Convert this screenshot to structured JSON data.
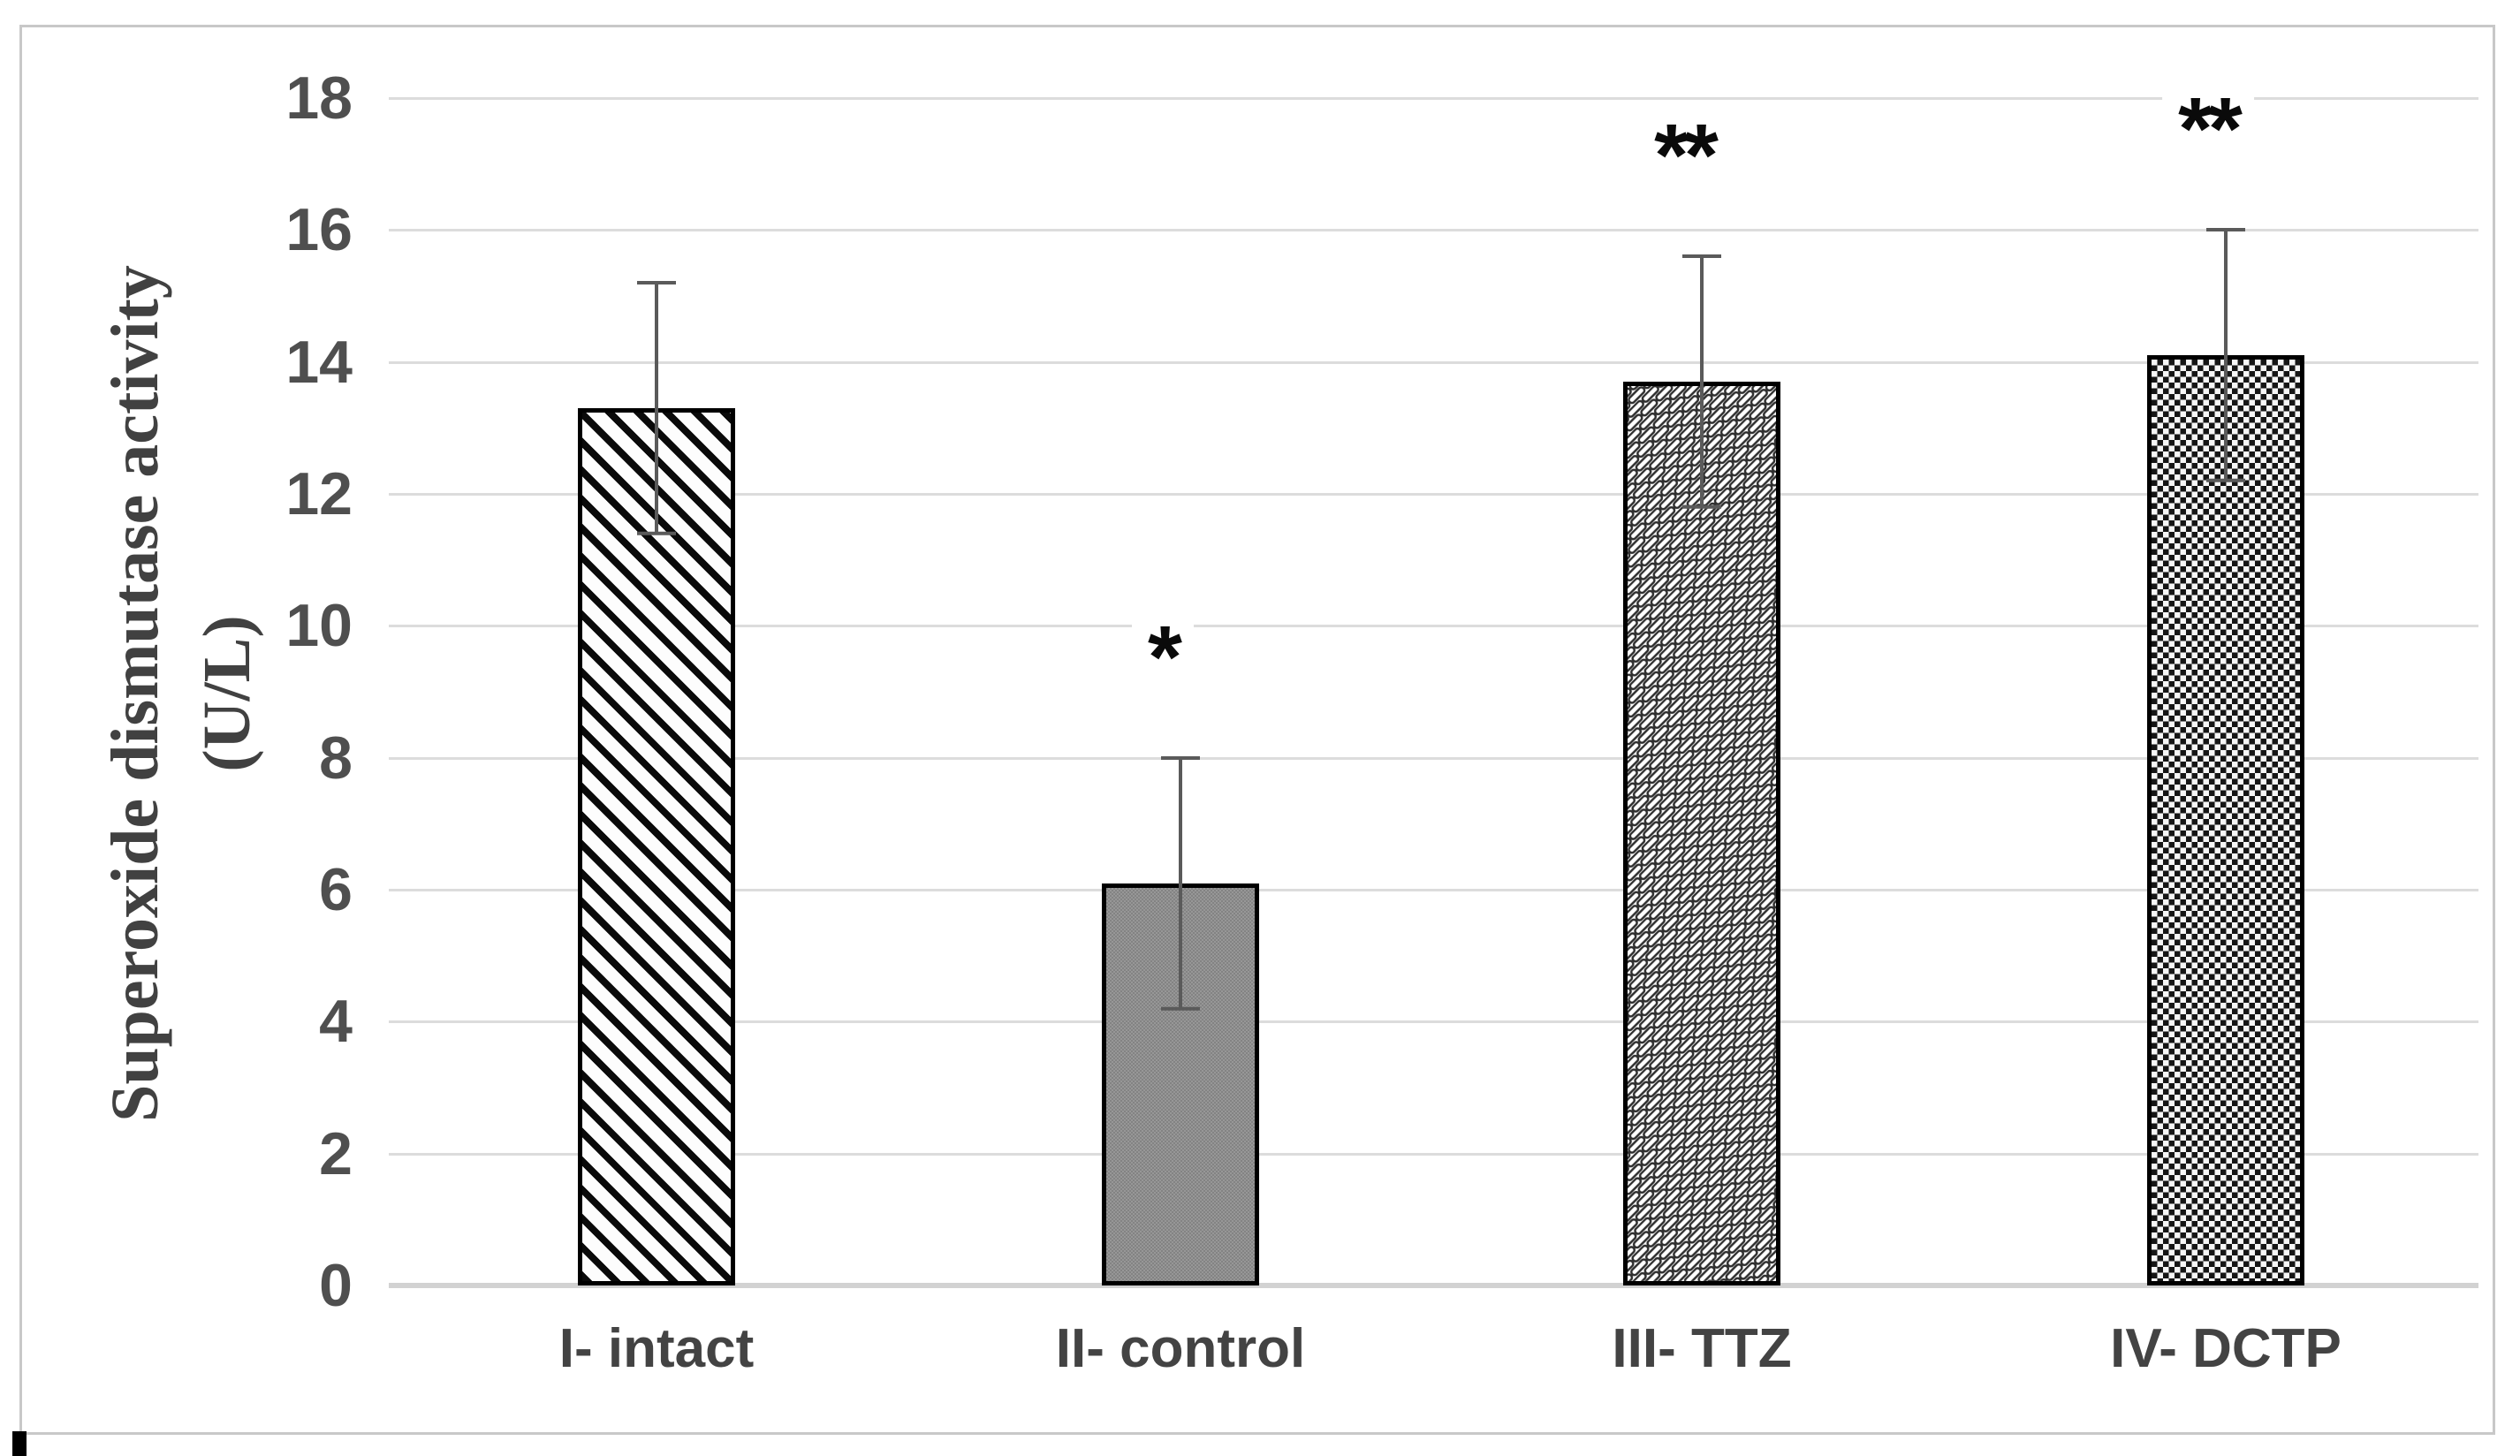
{
  "chart_data": {
    "type": "bar",
    "title": "",
    "xlabel": "",
    "ylabel_line1": "Superoxide dismutase activity",
    "ylabel_line2": "(U/L)",
    "categories": [
      "I- intact",
      "II- control",
      "III- TTZ",
      "IV- DCTP"
    ],
    "values": [
      13.3,
      6.1,
      13.7,
      14.1
    ],
    "errors": [
      1.9,
      1.9,
      1.9,
      1.9
    ],
    "error_tops": [
      15.2,
      8.0,
      15.6,
      16.0
    ],
    "error_bottoms": [
      11.4,
      4.2,
      11.8,
      12.2
    ],
    "annotations": [
      "",
      "*",
      "**",
      "**"
    ],
    "bar_patterns": [
      "diagonal-stripes",
      "solid-gray-dotted",
      "diagonal-brick",
      "checkerboard"
    ],
    "ylim": [
      0,
      18
    ],
    "yticks": [
      0,
      2,
      4,
      6,
      8,
      10,
      12,
      14,
      16,
      18
    ],
    "grid": true,
    "legend_position": "none"
  },
  "colors": {
    "frame_border": "#c8c8c8",
    "gridline": "#dcdcdc",
    "axis_line": "#d2d2d2",
    "tick_text": "#4f4f4f",
    "category_text": "#434343",
    "axis_title_text": "#414141",
    "bar_outline": "#000000",
    "error_bar": "#5a5a5a",
    "annotation_text": "#0a0a0a",
    "stripe_black": "#0a0a0a",
    "gray_fill": "#8d8d8d",
    "brick_outline": "#2e2e2e"
  }
}
